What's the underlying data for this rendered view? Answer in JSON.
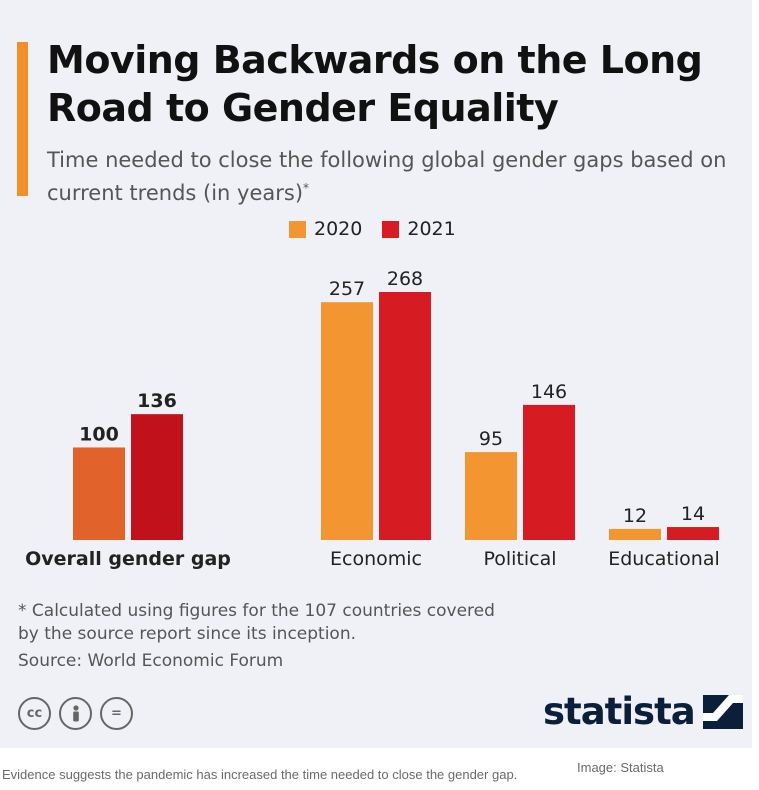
{
  "title": "Moving Backwards on the Long Road to Gender Equality",
  "subtitle": "Time needed to close the following global gender gaps based on current trends (in years)",
  "subtitle_mark": "*",
  "colors": {
    "accent": "#f28e2b",
    "series_2020": "#f39530",
    "series_2021": "#d71b23",
    "highlight_2020": "#e2622c",
    "highlight_2021": "#c1121b",
    "background": "#f0f1f6"
  },
  "chart_data": {
    "type": "bar",
    "categories": [
      "Overall gender gap",
      "Economic",
      "Political",
      "Educational"
    ],
    "highlighted_category": "Overall gender gap",
    "series": [
      {
        "name": "2020",
        "values": [
          100,
          257,
          95,
          12
        ]
      },
      {
        "name": "2021",
        "values": [
          136,
          268,
          146,
          14
        ]
      }
    ],
    "ylim": [
      0,
      268
    ],
    "grid": false,
    "legend_position": "top-center"
  },
  "footnote": "* Calculated using figures for the 107 countries covered by the source report since its inception.",
  "source": "Source: World Economic Forum",
  "license_icons": [
    "cc-icon",
    "attribution-icon",
    "no-derivatives-icon"
  ],
  "license_glyphs": {
    "cc": "cc",
    "by": "i",
    "nd": "="
  },
  "brand": "statista",
  "caption": "Evidence suggests the pandemic has increased the time needed to close the gender gap.",
  "credit": "Image: Statista"
}
